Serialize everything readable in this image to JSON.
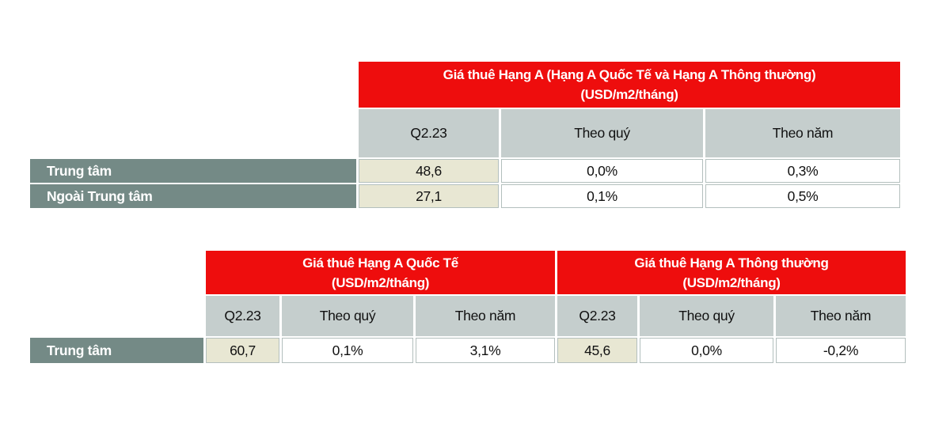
{
  "colors": {
    "header_red": "#ee0d0d",
    "subheader_gray": "#c5cecd",
    "row_label_gray": "#748a86",
    "value_beige": "#e8e7d3",
    "cell_border": "#b3bfbd",
    "header_text": "#ffffff",
    "body_text": "#111111"
  },
  "table1": {
    "title_line1": "Giá thuê Hạng A (Hạng A Quốc Tế và Hạng A Thông thường)",
    "title_line2": "(USD/m2/tháng)",
    "columns": [
      "Q2.23",
      "Theo quý",
      "Theo năm"
    ],
    "rows": [
      {
        "label": "Trung tâm",
        "values": [
          "48,6",
          "0,0%",
          "0,3%"
        ]
      },
      {
        "label": "Ngoài Trung tâm",
        "values": [
          "27,1",
          "0,1%",
          "0,5%"
        ]
      }
    ]
  },
  "table2": {
    "groups": [
      {
        "title_line1": "Giá thuê Hạng A Quốc Tế",
        "title_line2": "(USD/m2/tháng)",
        "columns": [
          "Q2.23",
          "Theo quý",
          "Theo năm"
        ]
      },
      {
        "title_line1": "Giá thuê Hạng A Thông thường",
        "title_line2": "(USD/m2/tháng)",
        "columns": [
          "Q2.23",
          "Theo quý",
          "Theo năm"
        ]
      }
    ],
    "rows": [
      {
        "label": "Trung tâm",
        "values": [
          "60,7",
          "0,1%",
          "3,1%",
          "45,6",
          "0,0%",
          "-0,2%"
        ]
      }
    ]
  }
}
